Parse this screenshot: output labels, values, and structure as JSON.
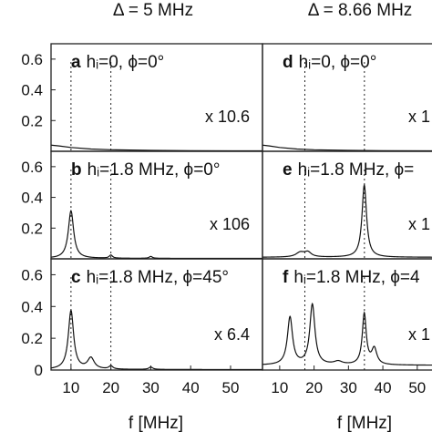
{
  "figure": {
    "columns": [
      {
        "title": "Δ = 5 MHz",
        "xlabel": "f [MHz]"
      },
      {
        "title": "Δ = 8.66 MHz",
        "xlabel": "f [MHz]"
      }
    ]
  },
  "chart_data": [
    {
      "type": "line",
      "panel": "a",
      "label_bold": "a",
      "label_text": "hᵢ=0, ϕ=0°",
      "scale": "x 10.6",
      "xlim": [
        5,
        58
      ],
      "ylim": [
        0,
        0.7
      ],
      "yticks": [
        "0.6",
        "0.4",
        "0.2"
      ],
      "xticks": [],
      "vlines": [
        10,
        20
      ],
      "peaks": [],
      "x": [
        5,
        7,
        10,
        15,
        20,
        30,
        40,
        58
      ],
      "y": [
        0.04,
        0.035,
        0.025,
        0.015,
        0.01,
        0.006,
        0.004,
        0.003
      ]
    },
    {
      "type": "line",
      "panel": "b",
      "label_bold": "b",
      "label_text": "hᵢ=1.8 MHz, ϕ=0°",
      "scale": "x 106",
      "xlim": [
        5,
        58
      ],
      "ylim": [
        0,
        0.7
      ],
      "yticks": [
        "0.6",
        "0.4",
        "0.2"
      ],
      "xticks": [],
      "vlines": [
        10,
        20
      ],
      "baseline": 0.003,
      "peaks": [
        [
          10,
          0.31,
          0.8
        ],
        [
          20,
          0.02,
          0.5
        ],
        [
          30,
          0.012,
          0.5
        ]
      ]
    },
    {
      "type": "line",
      "panel": "c",
      "label_bold": "c",
      "label_text": "hᵢ=1.8 MHz, ϕ=45°",
      "scale": "x 6.4",
      "xlim": [
        5,
        58
      ],
      "ylim": [
        0,
        0.7
      ],
      "yticks": [
        "0.6",
        "0.4",
        "0.2",
        "0"
      ],
      "xticks": [
        "10",
        "20",
        "30",
        "40",
        "50"
      ],
      "xtick_values": [
        10,
        20,
        30,
        40,
        50
      ],
      "vlines": [
        10,
        20
      ],
      "baseline": 0.003,
      "peaks": [
        [
          10,
          0.37,
          0.8
        ],
        [
          15,
          0.07,
          1.0
        ],
        [
          20,
          0.02,
          0.6
        ],
        [
          30,
          0.015,
          0.6
        ]
      ]
    },
    {
      "type": "line",
      "panel": "d",
      "label_bold": "d",
      "label_text": "hᵢ=0, ϕ=0°",
      "scale": "x 1",
      "xlim": [
        5,
        58
      ],
      "ylim": [
        0,
        0.7
      ],
      "yticks": [],
      "xticks": [],
      "vlines": [
        17.32,
        34.64
      ],
      "peaks": [],
      "x": [
        5,
        7,
        10,
        15,
        20,
        30,
        40,
        58
      ],
      "y": [
        0.04,
        0.035,
        0.025,
        0.015,
        0.01,
        0.006,
        0.004,
        0.003
      ]
    },
    {
      "type": "line",
      "panel": "e",
      "label_bold": "e",
      "label_text": "hᵢ=1.8 MHz, ϕ=",
      "scale": "x 1",
      "xlim": [
        5,
        58
      ],
      "ylim": [
        0,
        0.7
      ],
      "yticks": [],
      "xticks": [],
      "vlines": [
        17.32,
        34.64
      ],
      "baseline": 0.01,
      "peaks": [
        [
          16,
          0.03,
          1.5
        ],
        [
          18.2,
          0.03,
          1.2
        ],
        [
          34.6,
          0.47,
          0.8
        ]
      ]
    },
    {
      "type": "line",
      "panel": "f",
      "label_bold": "f",
      "label_text": "hᵢ=1.8 MHz, ϕ=4",
      "scale": "x 1",
      "xlim": [
        5,
        58
      ],
      "ylim": [
        0,
        0.7
      ],
      "yticks": [],
      "xticks": [
        "10",
        "20",
        "30",
        "40",
        "50"
      ],
      "xtick_values": [
        10,
        20,
        30,
        40,
        50
      ],
      "vlines": [
        17.32,
        34.64
      ],
      "baseline": 0.03,
      "peaks": [
        [
          13,
          0.3,
          0.9
        ],
        [
          19.5,
          0.38,
          0.9
        ],
        [
          27,
          0.02,
          1.5
        ],
        [
          34.6,
          0.32,
          0.7
        ],
        [
          37.5,
          0.1,
          0.9
        ]
      ]
    }
  ]
}
